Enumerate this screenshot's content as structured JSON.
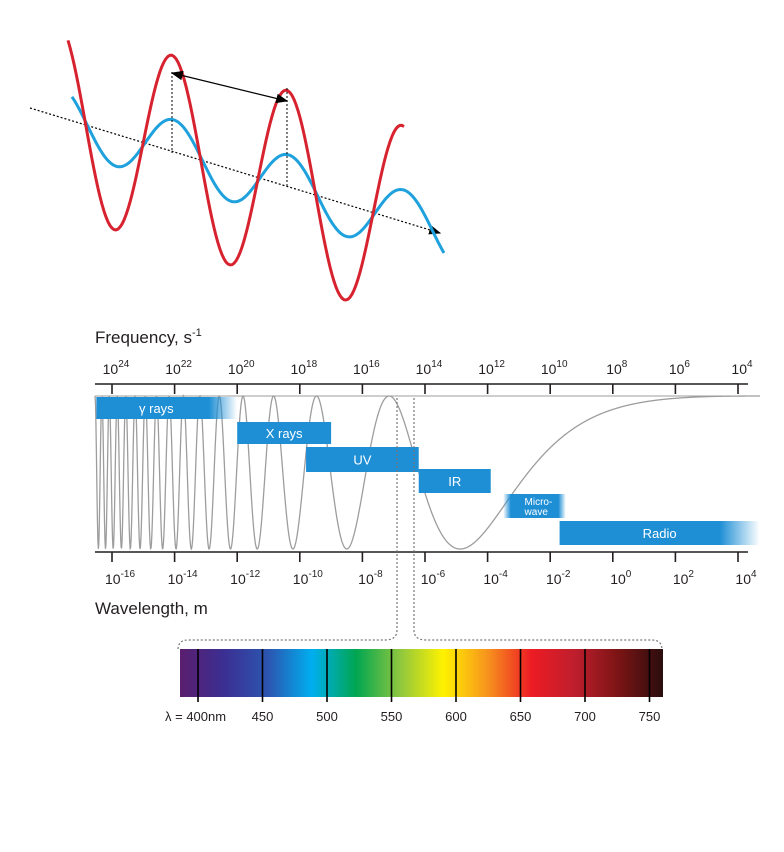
{
  "frequency_axis": {
    "title": "Frequency, s",
    "title_exponent": "-1",
    "ticks": [
      {
        "base": "10",
        "exp": "24"
      },
      {
        "base": "10",
        "exp": "22"
      },
      {
        "base": "10",
        "exp": "20"
      },
      {
        "base": "10",
        "exp": "18"
      },
      {
        "base": "10",
        "exp": "16"
      },
      {
        "base": "10",
        "exp": "14"
      },
      {
        "base": "10",
        "exp": "12"
      },
      {
        "base": "10",
        "exp": "10"
      },
      {
        "base": "10",
        "exp": "8"
      },
      {
        "base": "10",
        "exp": "6"
      },
      {
        "base": "10",
        "exp": "4"
      }
    ]
  },
  "wavelength_axis": {
    "title": "Wavelength, m",
    "ticks": [
      {
        "base": "10",
        "exp": "-16"
      },
      {
        "base": "10",
        "exp": "-14"
      },
      {
        "base": "10",
        "exp": "-12"
      },
      {
        "base": "10",
        "exp": "-10"
      },
      {
        "base": "10",
        "exp": "-8"
      },
      {
        "base": "10",
        "exp": "-6"
      },
      {
        "base": "10",
        "exp": "-4"
      },
      {
        "base": "10",
        "exp": "-2"
      },
      {
        "base": "10",
        "exp": "0"
      },
      {
        "base": "10",
        "exp": "2"
      },
      {
        "base": "10",
        "exp": "4"
      }
    ]
  },
  "bands": [
    {
      "name": "γ rays",
      "from": -16.5,
      "to": -12
    },
    {
      "name": "X rays",
      "from": -12,
      "to": -9
    },
    {
      "name": "UV",
      "from": -9.8,
      "to": -6.2
    },
    {
      "name": "IR",
      "from": -6.2,
      "to": -3.9
    },
    {
      "name": "Micro-",
      "name_line2": "wave",
      "from": -3.5,
      "to": -1.5
    },
    {
      "name": "Radio",
      "from": -1.7,
      "to": 4.7
    }
  ],
  "visible_spectrum": {
    "label_prefix": "λ = ",
    "labels": [
      "400nm",
      "450",
      "500",
      "550",
      "600",
      "650",
      "700",
      "750"
    ],
    "gradient": [
      "#5a1e6e",
      "#3b2f92",
      "#2c55b0",
      "#00aeef",
      "#00a651",
      "#8dc63f",
      "#fff200",
      "#f7941d",
      "#ed1c24",
      "#be1e2d",
      "#7a1414",
      "#2b0d0d"
    ]
  },
  "colors": {
    "electric_wave": "#d7232f",
    "magnetic_wave": "#1ea1dc",
    "band_fill": "#1e8fd5",
    "curve": "#9d9d9d"
  }
}
